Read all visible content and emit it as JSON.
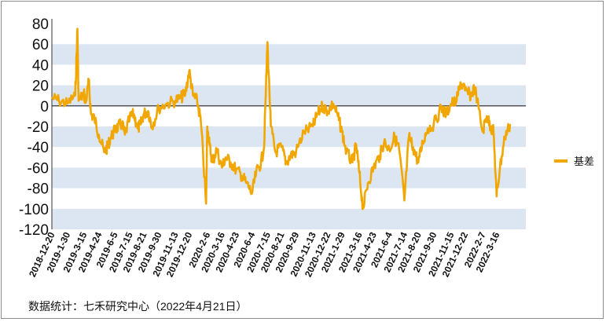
{
  "chart_data": {
    "type": "line",
    "title": "",
    "xlabel": "",
    "ylabel": "",
    "ylim": [
      -120,
      80
    ],
    "yticks": [
      80,
      60,
      40,
      20,
      0,
      -20,
      -40,
      -60,
      -80,
      -100,
      -120
    ],
    "xticks": [
      "2018-12-20",
      "2019-1-30",
      "2019-3-15",
      "2019-4-24",
      "2019-6-5",
      "2019-7-15",
      "2019-8-21",
      "2019-9-30",
      "2019-11-13",
      "2019-12-20",
      "2020-2-6",
      "2020-3-16",
      "2020-4-23",
      "2020-6-4",
      "2020-7-15",
      "2020-8-21",
      "2020-9-29",
      "2020-11-13",
      "2020-12-22",
      "2021-1-29",
      "2021-3-16",
      "2021-4-23",
      "2021-6-4",
      "2021-7-14",
      "2021-8-20",
      "2021-9-30",
      "2021-11-15",
      "2021-12-22",
      "2022-2-7",
      "2022-3-16"
    ],
    "grid": "alternating horizontal bands",
    "legend_position": "right",
    "colors": {
      "series": "#f2a700",
      "band": "#dce6f2",
      "zero_line": "#222222"
    },
    "series": [
      {
        "name": "基差",
        "x": [
          "2018-12-20",
          "2019-1-8",
          "2019-1-30",
          "2019-2-20",
          "2019-2-26",
          "2019-3-1",
          "2019-3-15",
          "2019-3-20",
          "2019-3-28",
          "2019-4-3",
          "2019-4-12",
          "2019-4-24",
          "2019-5-8",
          "2019-5-17",
          "2019-5-24",
          "2019-6-5",
          "2019-6-14",
          "2019-6-25",
          "2019-7-2",
          "2019-7-15",
          "2019-7-26",
          "2019-8-5",
          "2019-8-13",
          "2019-8-21",
          "2019-9-2",
          "2019-9-12",
          "2019-9-30",
          "2019-10-21",
          "2019-11-13",
          "2019-11-28",
          "2019-12-10",
          "2019-12-20",
          "2019-12-30",
          "2020-1-10",
          "2020-1-20",
          "2020-2-3",
          "2020-2-6",
          "2020-2-12",
          "2020-2-20",
          "2020-3-2",
          "2020-3-16",
          "2020-3-26",
          "2020-4-8",
          "2020-4-23",
          "2020-5-8",
          "2020-5-20",
          "2020-6-4",
          "2020-6-15",
          "2020-6-28",
          "2020-7-6",
          "2020-7-15",
          "2020-7-24",
          "2020-8-5",
          "2020-8-21",
          "2020-9-3",
          "2020-9-15",
          "2020-9-29",
          "2020-10-20",
          "2020-11-13",
          "2020-11-25",
          "2020-12-8",
          "2020-12-22",
          "2021-1-6",
          "2021-1-18",
          "2021-1-29",
          "2021-2-10",
          "2021-2-26",
          "2021-3-8",
          "2021-3-16",
          "2021-3-26",
          "2021-4-8",
          "2021-4-23",
          "2021-5-10",
          "2021-5-21",
          "2021-6-4",
          "2021-6-18",
          "2021-6-30",
          "2021-7-14",
          "2021-7-26",
          "2021-8-6",
          "2021-8-20",
          "2021-9-1",
          "2021-9-14",
          "2021-9-30",
          "2021-10-20",
          "2021-11-2",
          "2021-11-15",
          "2021-11-30",
          "2021-12-10",
          "2021-12-22",
          "2022-1-7",
          "2022-1-17",
          "2022-2-7",
          "2022-2-18",
          "2022-2-28",
          "2022-3-8",
          "2022-3-16",
          "2022-3-25",
          "2022-4-7",
          "2022-4-21"
        ],
        "values": [
          8,
          5,
          2,
          10,
          75,
          5,
          12,
          3,
          24,
          -8,
          -12,
          -28,
          -45,
          -40,
          -32,
          -24,
          -20,
          -18,
          -28,
          -12,
          -8,
          -22,
          -18,
          -8,
          -5,
          -20,
          -2,
          2,
          5,
          8,
          12,
          34,
          10,
          5,
          -15,
          -95,
          -20,
          -38,
          -55,
          -42,
          -60,
          -50,
          -55,
          -62,
          -68,
          -75,
          -85,
          -65,
          -55,
          -40,
          62,
          -20,
          -45,
          -40,
          -55,
          -48,
          -45,
          -25,
          -20,
          -8,
          0,
          -5,
          2,
          -10,
          -25,
          -45,
          -55,
          -38,
          -65,
          -100,
          -75,
          -60,
          -48,
          -35,
          -42,
          -30,
          -42,
          -92,
          -30,
          -40,
          -55,
          -35,
          -22,
          -18,
          -2,
          -8,
          2,
          5,
          23,
          15,
          10,
          18,
          -25,
          -10,
          -20,
          -25,
          -88,
          -60,
          -30,
          -18
        ]
      }
    ]
  },
  "legend": {
    "label": "基差"
  },
  "footer": {
    "source": "数据统计：七禾研究中心（2022年4月21日）"
  }
}
